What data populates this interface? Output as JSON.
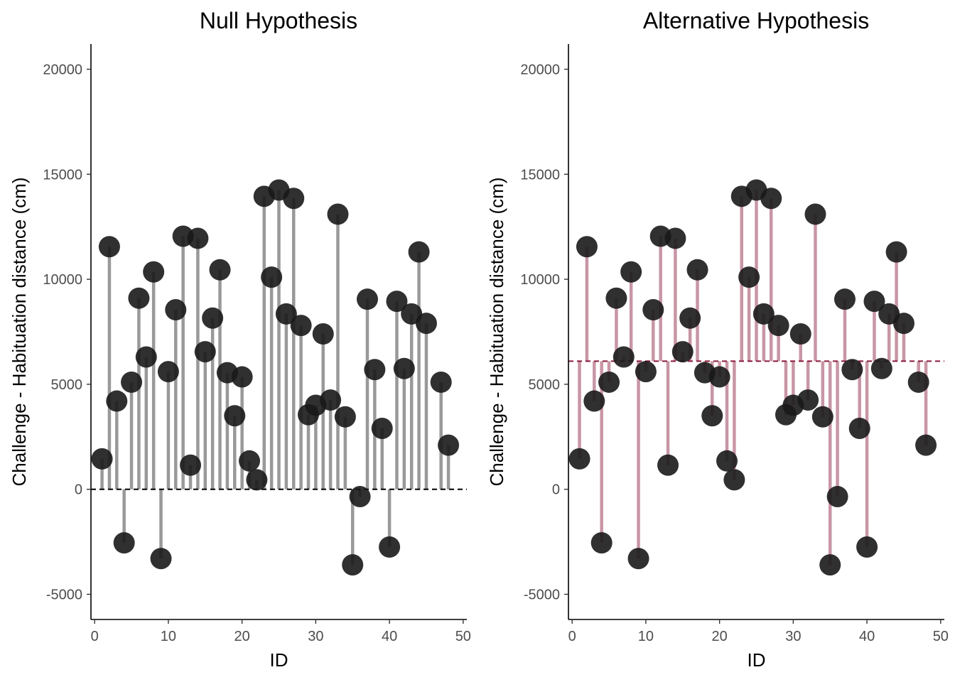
{
  "chart_data": [
    {
      "type": "scatter",
      "title": "Null Hypothesis",
      "xlabel": "ID",
      "ylabel": "Challenge - Habituation distance (cm)",
      "xlim": [
        -0.5,
        50.5
      ],
      "ylim": [
        -6200,
        21200
      ],
      "xticks": [
        "0",
        "10",
        "20",
        "30",
        "40",
        "50"
      ],
      "yticks": [
        "-5000",
        "0",
        "5000",
        "10000",
        "15000",
        "20000"
      ],
      "reference_line": 0,
      "segment_color": "#999999",
      "line_color": "#000000",
      "point_color": "#1a1a1a",
      "grid": false,
      "x": [
        1,
        2,
        3,
        4,
        5,
        6,
        7,
        8,
        9,
        10,
        11,
        12,
        13,
        14,
        15,
        16,
        17,
        18,
        19,
        20,
        21,
        22,
        23,
        24,
        25,
        26,
        27,
        28,
        29,
        30,
        31,
        32,
        33,
        34,
        35,
        36,
        37,
        38,
        39,
        40,
        41,
        42,
        43,
        44,
        45,
        47,
        48
      ],
      "y": [
        1450,
        11550,
        4200,
        -2550,
        5100,
        9100,
        6300,
        10350,
        -3300,
        5600,
        8550,
        12050,
        1150,
        11950,
        6550,
        8150,
        10450,
        5550,
        3500,
        5350,
        1350,
        450,
        13950,
        10100,
        14250,
        8350,
        13850,
        7800,
        3550,
        4000,
        7400,
        4250,
        13100,
        3450,
        -3600,
        -350,
        9050,
        5700,
        2900,
        -2750,
        8950,
        5750,
        8350,
        11300,
        7900,
        5100,
        2100
      ]
    },
    {
      "type": "scatter",
      "title": "Alternative Hypothesis",
      "xlabel": "ID",
      "ylabel": "Challenge - Habituation distance (cm)",
      "xlim": [
        -0.5,
        50.5
      ],
      "ylim": [
        -6200,
        21200
      ],
      "xticks": [
        "0",
        "10",
        "20",
        "30",
        "40",
        "50"
      ],
      "yticks": [
        "-5000",
        "0",
        "5000",
        "10000",
        "15000",
        "20000"
      ],
      "reference_line": 6100,
      "segment_color": "#c896a5",
      "line_color": "#8b1a3a",
      "point_color": "#1a1a1a",
      "grid": false,
      "x": [
        1,
        2,
        3,
        4,
        5,
        6,
        7,
        8,
        9,
        10,
        11,
        12,
        13,
        14,
        15,
        16,
        17,
        18,
        19,
        20,
        21,
        22,
        23,
        24,
        25,
        26,
        27,
        28,
        29,
        30,
        31,
        32,
        33,
        34,
        35,
        36,
        37,
        38,
        39,
        40,
        41,
        42,
        43,
        44,
        45,
        47,
        48
      ],
      "y": [
        1450,
        11550,
        4200,
        -2550,
        5100,
        9100,
        6300,
        10350,
        -3300,
        5600,
        8550,
        12050,
        1150,
        11950,
        6550,
        8150,
        10450,
        5550,
        3500,
        5350,
        1350,
        450,
        13950,
        10100,
        14250,
        8350,
        13850,
        7800,
        3550,
        4000,
        7400,
        4250,
        13100,
        3450,
        -3600,
        -350,
        9050,
        5700,
        2900,
        -2750,
        8950,
        5750,
        8350,
        11300,
        7900,
        5100,
        2100
      ]
    }
  ]
}
